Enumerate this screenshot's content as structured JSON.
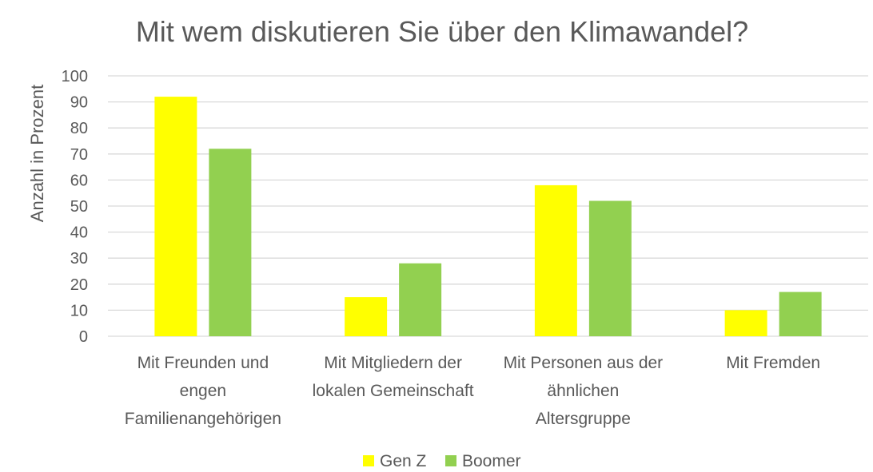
{
  "chart_data": {
    "type": "bar",
    "title": "Mit wem diskutieren Sie über den Klimawandel?",
    "xlabel": "",
    "ylabel": "Anzahl in Prozent",
    "ylim": [
      0,
      100
    ],
    "yticks": [
      0,
      10,
      20,
      30,
      40,
      50,
      60,
      70,
      80,
      90,
      100
    ],
    "grid": true,
    "legend_position": "bottom",
    "categories": [
      [
        "Mit Freunden und",
        "engen",
        "Familienangehörigen"
      ],
      [
        "Mit Mitgliedern der",
        "lokalen Gemeinschaft"
      ],
      [
        "Mit Personen aus der",
        "ähnlichen",
        "Altersgruppe"
      ],
      [
        "Mit Fremden"
      ]
    ],
    "series": [
      {
        "name": "Gen Z",
        "color": "#ffff00",
        "values": [
          92,
          15,
          58,
          10
        ]
      },
      {
        "name": "Boomer",
        "color": "#92d050",
        "values": [
          72,
          28,
          52,
          17
        ]
      }
    ]
  }
}
